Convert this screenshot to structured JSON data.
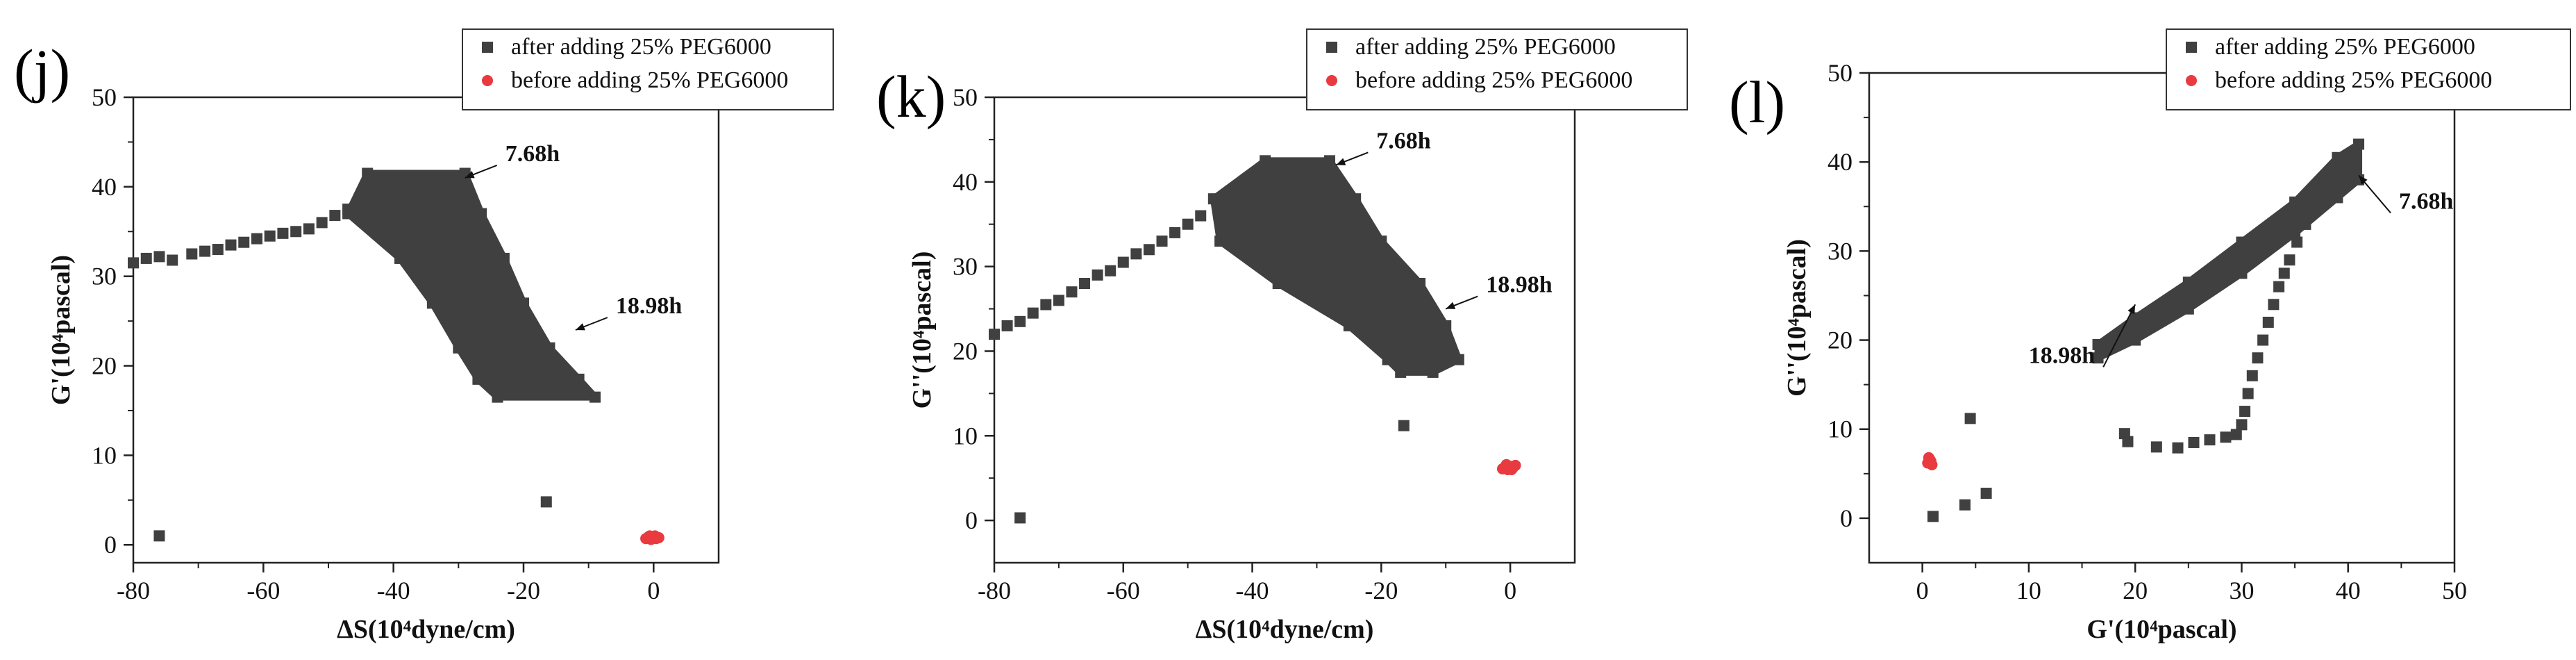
{
  "figure": {
    "colors": {
      "after": "#404040",
      "before": "#e83a3f",
      "frame": "#222222"
    }
  },
  "chart_data": [
    {
      "type": "scatter",
      "panel_label": "(j)",
      "xlabel": "ΔS(10⁴dyne/cm)",
      "ylabel": "G'(10⁴pascal)",
      "xlim": [
        -80,
        10
      ],
      "ylim": [
        -2,
        50
      ],
      "x_ticks": [
        -80,
        -60,
        -40,
        -20,
        0
      ],
      "y_ticks": [
        0,
        10,
        20,
        30,
        40,
        50
      ],
      "grid": false,
      "legend_position": "top-right",
      "annotations": [
        {
          "text": "7.68h",
          "x": -29,
          "y": 41,
          "dx": 1,
          "dy": -0.2
        },
        {
          "text": "18.98h",
          "x": -12,
          "y": 24,
          "dx": 1,
          "dy": -0.2
        }
      ],
      "series": [
        {
          "name": "after adding 25% PEG6000",
          "marker": "square",
          "points": [
            [
              -80,
              31.5
            ],
            [
              -78,
              32
            ],
            [
              -76,
              32.2
            ],
            [
              -74,
              31.8
            ],
            [
              -71,
              32.5
            ],
            [
              -69,
              32.8
            ],
            [
              -67,
              33
            ],
            [
              -65,
              33.5
            ],
            [
              -63,
              33.8
            ],
            [
              -61,
              34.2
            ],
            [
              -59,
              34.5
            ],
            [
              -57,
              34.8
            ],
            [
              -55,
              35
            ],
            [
              -53,
              35.3
            ],
            [
              -51,
              36
            ],
            [
              -49,
              36.8
            ],
            [
              -47,
              37.5
            ],
            [
              -45,
              38
            ],
            [
              -76,
              1
            ],
            [
              -16.5,
              4.8
            ]
          ],
          "band": [
            {
              "y": 41.5,
              "xmin": -44,
              "xmax": -29
            },
            {
              "y": 37,
              "xmin": -47,
              "xmax": -26.5
            },
            {
              "y": 32,
              "xmin": -39,
              "xmax": -23
            },
            {
              "y": 27,
              "xmin": -34,
              "xmax": -20
            },
            {
              "y": 22,
              "xmin": -30,
              "xmax": -16
            },
            {
              "y": 18.5,
              "xmin": -27,
              "xmax": -11.5
            },
            {
              "y": 16.5,
              "xmin": -24,
              "xmax": -9
            }
          ]
        },
        {
          "name": "before adding 25% PEG6000",
          "marker": "circle",
          "points": [
            [
              -1.2,
              0.7
            ],
            [
              -0.8,
              0.9
            ],
            [
              -0.4,
              0.6
            ],
            [
              0,
              0.8
            ],
            [
              0.4,
              0.7
            ],
            [
              0.8,
              0.8
            ],
            [
              -0.6,
              1
            ],
            [
              0.2,
              1
            ]
          ]
        }
      ]
    },
    {
      "type": "scatter",
      "panel_label": "(k)",
      "xlabel": "ΔS(10⁴dyne/cm)",
      "ylabel": "G''(10⁴pascal)",
      "xlim": [
        -80,
        10
      ],
      "ylim": [
        -5,
        50
      ],
      "x_ticks": [
        -80,
        -60,
        -40,
        -20,
        0
      ],
      "y_ticks": [
        0,
        10,
        20,
        30,
        40,
        50
      ],
      "grid": false,
      "legend_position": "top-right",
      "annotations": [
        {
          "text": "7.68h",
          "x": -27,
          "y": 42,
          "dx": 1,
          "dy": -0.2
        },
        {
          "text": "18.98h",
          "x": -10,
          "y": 25,
          "dx": 1,
          "dy": -0.2
        }
      ],
      "series": [
        {
          "name": "after adding 25% PEG6000",
          "marker": "square",
          "points": [
            [
              -80,
              22
            ],
            [
              -78,
              23
            ],
            [
              -76,
              23.5
            ],
            [
              -74,
              24.5
            ],
            [
              -72,
              25.5
            ],
            [
              -70,
              26
            ],
            [
              -68,
              27
            ],
            [
              -66,
              28
            ],
            [
              -64,
              29
            ],
            [
              -62,
              29.5
            ],
            [
              -60,
              30.5
            ],
            [
              -58,
              31.5
            ],
            [
              -56,
              32
            ],
            [
              -54,
              33
            ],
            [
              -52,
              34
            ],
            [
              -50,
              35
            ],
            [
              -48,
              36
            ],
            [
              -76,
              0.3
            ],
            [
              -16.5,
              11.2
            ]
          ],
          "band": [
            {
              "y": 42.5,
              "xmin": -38,
              "xmax": -28
            },
            {
              "y": 38,
              "xmin": -46,
              "xmax": -24
            },
            {
              "y": 33,
              "xmin": -45,
              "xmax": -20
            },
            {
              "y": 28,
              "xmin": -36,
              "xmax": -14
            },
            {
              "y": 23,
              "xmin": -25,
              "xmax": -10
            },
            {
              "y": 19,
              "xmin": -19,
              "xmax": -8
            },
            {
              "y": 17.5,
              "xmin": -17,
              "xmax": -12
            }
          ]
        },
        {
          "name": "before adding 25% PEG6000",
          "marker": "circle",
          "points": [
            [
              -1.2,
              6.1
            ],
            [
              -0.8,
              6.3
            ],
            [
              -0.4,
              6.0
            ],
            [
              0,
              6.4
            ],
            [
              0.4,
              6.2
            ],
            [
              0.8,
              6.5
            ],
            [
              -0.6,
              6.6
            ],
            [
              0.2,
              6.0
            ]
          ]
        }
      ]
    },
    {
      "type": "scatter",
      "panel_label": "(l)",
      "xlabel": "G'(10⁴pascal)",
      "ylabel": "G''(10⁴pascal)",
      "xlim": [
        -5,
        50
      ],
      "ylim": [
        -5,
        50
      ],
      "x_ticks": [
        0,
        10,
        20,
        30,
        40,
        50
      ],
      "y_ticks": [
        0,
        10,
        20,
        30,
        40,
        50
      ],
      "grid": false,
      "legend_position": "top-right",
      "annotations": [
        {
          "text": "18.98h",
          "x": 20,
          "y": 24,
          "dx": -1,
          "dy": 1
        },
        {
          "text": "7.68h",
          "x": 41,
          "y": 38.5,
          "dx": 1,
          "dy": 0.6
        }
      ],
      "series": [
        {
          "name": "after adding 25% PEG6000",
          "marker": "square",
          "points": [
            [
              1,
              0.2
            ],
            [
              4,
              1.5
            ],
            [
              4.5,
              11.2
            ],
            [
              6,
              2.8
            ],
            [
              19,
              9.5
            ],
            [
              19.3,
              8.6
            ],
            [
              22,
              8
            ],
            [
              24,
              7.9
            ],
            [
              25.5,
              8.5
            ],
            [
              27,
              8.8
            ],
            [
              28.5,
              9.1
            ],
            [
              29.5,
              9.4
            ],
            [
              30,
              10.5
            ],
            [
              30.3,
              12
            ],
            [
              30.6,
              14
            ],
            [
              31,
              16
            ],
            [
              31.5,
              18
            ],
            [
              32,
              20
            ],
            [
              32.5,
              22
            ],
            [
              33,
              24
            ],
            [
              33.5,
              26
            ],
            [
              34,
              27.5
            ],
            [
              34.5,
              29
            ],
            [
              35.2,
              31
            ],
            [
              36,
              33
            ],
            [
              37,
              35
            ],
            [
              38,
              36.5
            ],
            [
              39,
              37.8
            ]
          ],
          "band": [
            {
              "x": 16.5,
              "ymin": 18,
              "ymax": 19.5
            },
            {
              "x": 20,
              "ymin": 20,
              "ymax": 22.5
            },
            {
              "x": 25,
              "ymin": 23.5,
              "ymax": 26.5
            },
            {
              "x": 30,
              "ymin": 27.5,
              "ymax": 31
            },
            {
              "x": 35,
              "ymin": 32,
              "ymax": 35.5
            },
            {
              "x": 39,
              "ymin": 36,
              "ymax": 40.5
            },
            {
              "x": 41,
              "ymin": 38,
              "ymax": 42
            }
          ]
        },
        {
          "name": "before adding 25% PEG6000",
          "marker": "circle",
          "points": [
            [
              0.5,
              6.2
            ],
            [
              0.7,
              6.6
            ],
            [
              0.9,
              6.0
            ],
            [
              0.6,
              6.8
            ],
            [
              0.8,
              6.4
            ]
          ]
        }
      ]
    }
  ]
}
